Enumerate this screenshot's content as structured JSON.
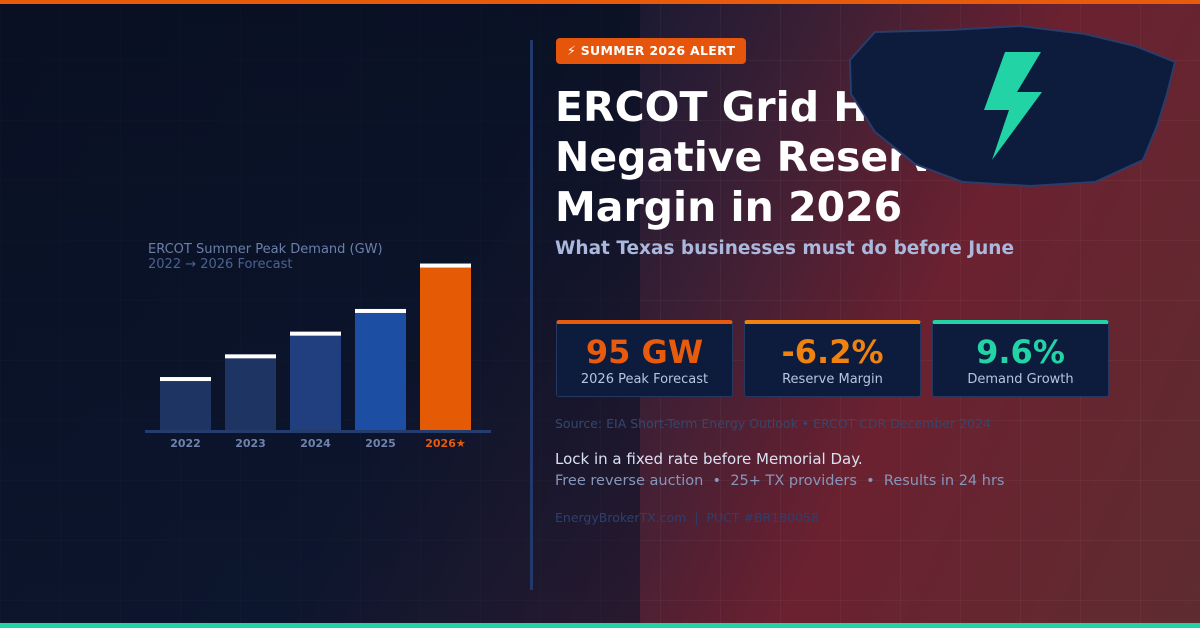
{
  "colors": {
    "accent": "#e85a0c",
    "green": "#22d3a5",
    "bar_dark": "#1e3462",
    "bar_mid": "#213f7e",
    "bar_blue": "#1c4fa3",
    "highlight": "#e55a05"
  },
  "badge": {
    "icon": "lightning-icon",
    "text": "⚡ SUMMER 2026 ALERT"
  },
  "headline": {
    "lines": [
      "ERCOT Grid Hits",
      "Negative Reserve",
      "Margin in 2026"
    ]
  },
  "subhead": "What Texas businesses must do before June",
  "hero_icon": "lightning-bolt-icon",
  "stats": [
    {
      "value": "95 GW",
      "label": "2026 Peak Forecast",
      "color": "#e85a0c"
    },
    {
      "value": "-6.2%",
      "label": "Reserve Margin",
      "color": "#f0820f"
    },
    {
      "value": "9.6%",
      "label": "Demand Growth",
      "color": "#22d3a5"
    }
  ],
  "source": "Source: EIA Short-Term Energy Outlook • ERCOT CDR December 2024",
  "cta": "Lock in a fixed rate before Memorial Day.",
  "features": [
    "Free reverse auction",
    "25+ TX providers",
    "Results in 24 hrs"
  ],
  "feature_separator": "•",
  "footer": {
    "site": "EnergyBrokerTX.com",
    "separator": "|",
    "license": "PUCT #BR180058"
  },
  "chart_data": {
    "type": "bar",
    "title": "ERCOT Summer Peak Demand (GW)",
    "subtitle": "2022 → 2026 Forecast",
    "categories": [
      "2022",
      "2023",
      "2024",
      "2025",
      "2026★"
    ],
    "values": [
      80,
      83,
      86,
      89,
      95
    ],
    "ylabel": "",
    "xlabel": "",
    "ylim": [
      73,
      96
    ],
    "highlight_index": 4,
    "grid": false,
    "legend": "none"
  }
}
